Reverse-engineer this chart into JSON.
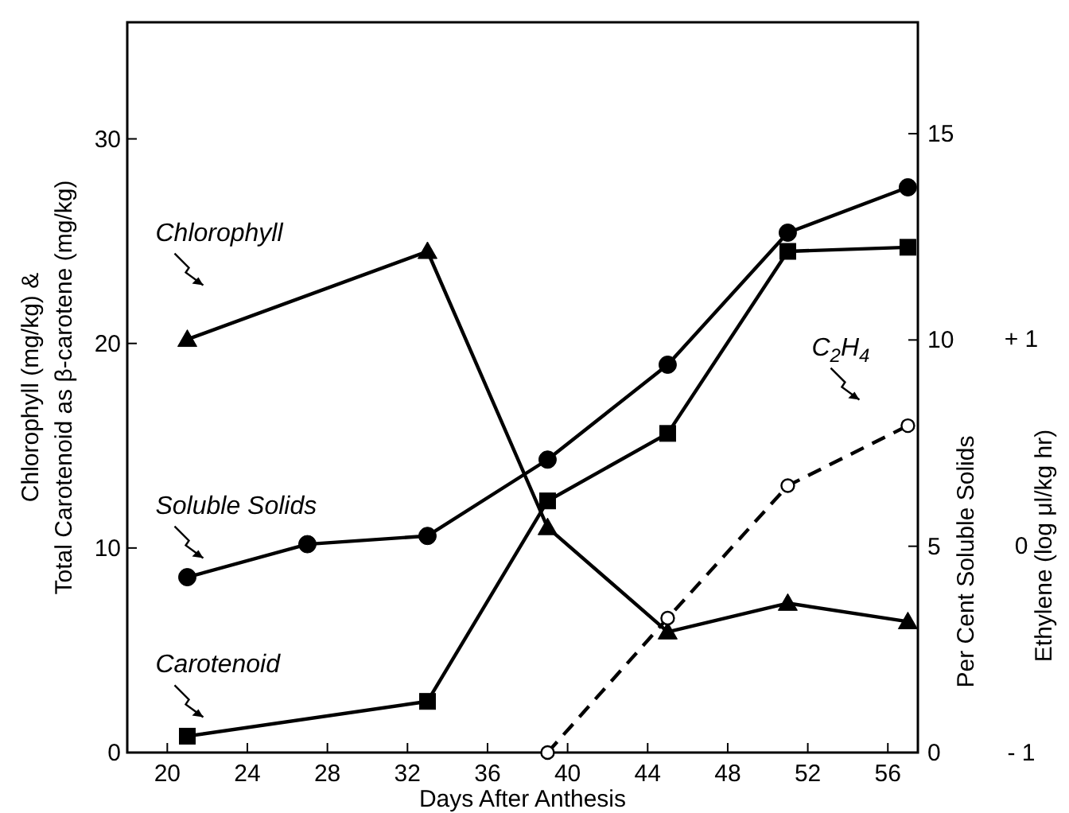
{
  "chart_data": {
    "type": "line",
    "xlabel": "Days After Anthesis",
    "ylabel": "Chlorophyll (mg/kg) &\nTotal Carotenoid as β-carotene (mg/kg)",
    "y2label": "Per Cent Soluble Solids",
    "y3label": "Ethylene (log μl/kg hr)",
    "xlim": [
      18,
      57.5
    ],
    "xticks": [
      20,
      24,
      28,
      32,
      36,
      40,
      44,
      48,
      52,
      56
    ],
    "ylim": [
      0,
      35.7
    ],
    "yticks": [
      0,
      10,
      20,
      30
    ],
    "y2lim": [
      0,
      17.7
    ],
    "y2ticks": [
      0,
      5,
      10,
      15
    ],
    "y3lim": [
      -1,
      2.53
    ],
    "y3ticks": [
      {
        "value": -1,
        "label": "- 1"
      },
      {
        "value": 0,
        "label": "0"
      },
      {
        "value": 1,
        "label": "+ 1"
      }
    ],
    "series": [
      {
        "name": "Chlorophyll",
        "color": "#000000",
        "marker": "triangle",
        "line_style": "solid",
        "x": [
          21,
          33,
          39,
          45,
          51,
          57
        ],
        "values": [
          20.2,
          24.5,
          11.0,
          5.9,
          7.3,
          6.4
        ]
      },
      {
        "name": "Soluble Solids",
        "color": "#000000",
        "marker": "circle",
        "line_style": "solid",
        "axis": "y2",
        "x": [
          21,
          27,
          33,
          39,
          45,
          51,
          57
        ],
        "values": [
          4.25,
          5.05,
          5.25,
          7.1,
          9.4,
          12.6,
          13.7
        ]
      },
      {
        "name": "Carotenoid",
        "color": "#000000",
        "marker": "square",
        "line_style": "solid",
        "x": [
          21,
          33,
          39,
          45,
          51,
          57
        ],
        "values": [
          0.8,
          2.5,
          12.3,
          15.6,
          24.5,
          24.7
        ]
      },
      {
        "name": "C$_{2}$H$_{4}$",
        "color": "#000000",
        "marker": "circle",
        "line_style": "dashed",
        "axis": "y3",
        "x": [
          39,
          45,
          51,
          57
        ],
        "values": [
          -1.0,
          -0.35,
          0.29,
          0.58
        ]
      }
    ]
  }
}
